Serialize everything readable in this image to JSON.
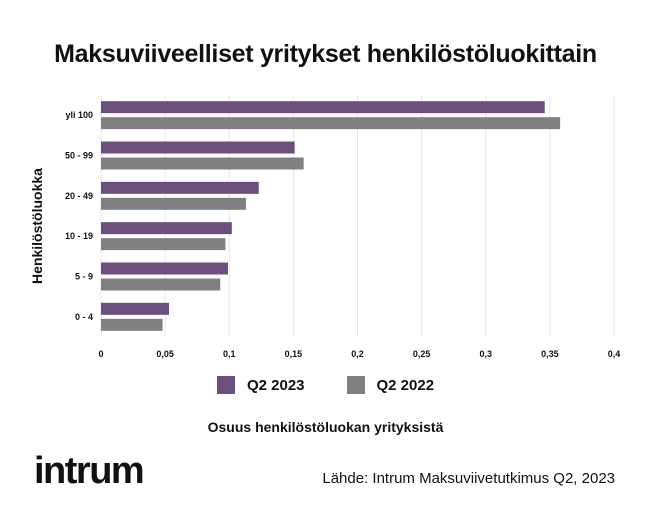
{
  "chart_data": {
    "type": "bar",
    "orientation": "horizontal",
    "title": "Maksuviiveelliset yritykset henkilöstöluokittain",
    "xlabel": "Osuus henkilöstöluokan yrityksistä",
    "ylabel": "Henkilöstöluokka",
    "categories": [
      "yli 100",
      "50 - 99",
      "20 - 49",
      "10 - 19",
      "5 - 9",
      "0 - 4"
    ],
    "series": [
      {
        "name": "Q2 2023",
        "color": "#6b4f7c",
        "values": [
          0.346,
          0.151,
          0.123,
          0.102,
          0.099,
          0.053
        ]
      },
      {
        "name": "Q2 2022",
        "color": "#808080",
        "values": [
          0.358,
          0.158,
          0.113,
          0.097,
          0.093,
          0.048
        ]
      }
    ],
    "xlim": [
      0,
      0.4
    ],
    "xticks": [
      0,
      0.05,
      0.1,
      0.15,
      0.2,
      0.25,
      0.3,
      0.35,
      0.4
    ],
    "xtick_labels": [
      "0",
      "0,05",
      "0,1",
      "0,15",
      "0,2",
      "0,25",
      "0,3",
      "0,35",
      "0,4"
    ],
    "grid": true,
    "legend_position": "bottom"
  },
  "logo_text": "intrum",
  "source_text": "Lähde: Intrum Maksuviivetutkimus Q2, 2023"
}
